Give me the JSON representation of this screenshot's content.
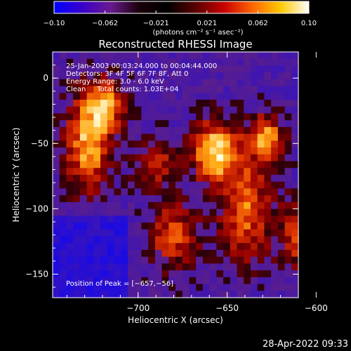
{
  "colorbar": {
    "ticks": [
      "−0.10",
      "−0.062",
      "−0.021",
      "0.021",
      "0.062",
      "0.10"
    ],
    "unit_label": "(photons cm⁻² s⁻¹ asec⁻²)",
    "colors": [
      "#0000ff",
      "#3a00c8",
      "#6a1a90",
      "#1a0008",
      "#000000",
      "#5a0000",
      "#c80000",
      "#ff6400",
      "#ffc800",
      "#ffffff"
    ]
  },
  "footer": {
    "timestamp": "28-Apr-2022 09:33"
  },
  "chart_data": {
    "type": "heatmap",
    "title": "Reconstructed RHESSI Image",
    "xlabel": "Heliocentric X (arcsec)",
    "ylabel": "Heliocentric Y (arcsec)",
    "xlim": [
      -748,
      -610
    ],
    "ylim": [
      -168,
      20
    ],
    "x_ticks": [
      {
        "value": -700,
        "label": "−700"
      },
      {
        "value": -650,
        "label": "−650"
      },
      {
        "value": -600,
        "label": "−600"
      }
    ],
    "y_ticks": [
      {
        "value": 0,
        "label": "0"
      },
      {
        "value": -50,
        "label": "−50"
      },
      {
        "value": -100,
        "label": "−100"
      },
      {
        "value": -150,
        "label": "−150"
      }
    ],
    "annotations": [
      "25-Jan-2003 00:03:24.000 to 00:04:44.000",
      "Detectors: 3F 4F 5F 6F 7F 8F, Att 0",
      "Energy Range: 3.0 - 6.0 keV",
      "Clean     Total counts: 1.03E+04"
    ],
    "peak_label": "Position of Peak = [−657,−56]",
    "peak": {
      "x": -657,
      "y": -56
    },
    "sources": [
      {
        "x": -657,
        "y": -56,
        "amp": 1.0,
        "sx": 9,
        "sy": 16
      },
      {
        "x": -728,
        "y": -50,
        "amp": 0.85,
        "sx": 9,
        "sy": 26
      },
      {
        "x": -718,
        "y": -20,
        "amp": 0.65,
        "sx": 8,
        "sy": 14
      },
      {
        "x": -628,
        "y": -45,
        "amp": 0.8,
        "sx": 7,
        "sy": 12
      },
      {
        "x": -640,
        "y": -100,
        "amp": 0.7,
        "sx": 10,
        "sy": 28
      },
      {
        "x": -680,
        "y": -120,
        "amp": 0.6,
        "sx": 10,
        "sy": 18
      },
      {
        "x": -690,
        "y": -65,
        "amp": 0.55,
        "sx": 8,
        "sy": 12
      },
      {
        "x": -610,
        "y": -120,
        "amp": 0.55,
        "sx": 8,
        "sy": 20
      }
    ]
  }
}
